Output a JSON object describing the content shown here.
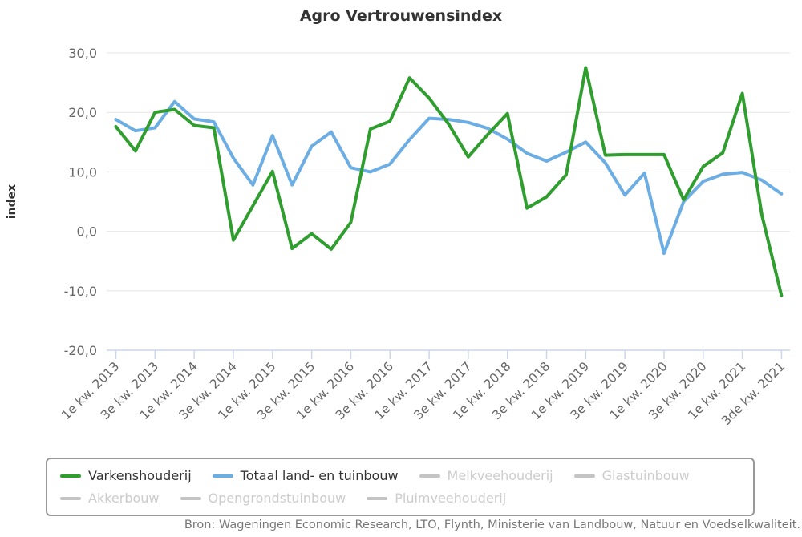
{
  "title": "Agro Vertrouwensindex",
  "source": "Bron: Wageningen Economic Research, LTO, Flynth, Ministerie van Landbouw, Natuur en Voedselkwaliteit.",
  "colors": {
    "varkenshouderij": "#2F9E2F",
    "totaal": "#6CAEE4",
    "disabled_series": "#c4c4c4",
    "gridline": "#e6e6e6",
    "axis_line": "#ccd6eb",
    "axis_label": "#666666",
    "title_text": "#333333"
  },
  "y_axis": {
    "title": "index",
    "tick_labels": [
      "30,0",
      "20,0",
      "10,0",
      "0,0",
      "-10,0",
      "-20,0"
    ],
    "tick_values": [
      30,
      20,
      10,
      0,
      -10,
      -20
    ]
  },
  "x_axis": {
    "tick_labels": [
      "1e kw. 2013",
      "3e kw. 2013",
      "1e kw. 2014",
      "3e kw. 2014",
      "1e kw. 2015",
      "3e kw. 2015",
      "1e kw. 2016",
      "3e kw. 2016",
      "1e kw. 2017",
      "3e kw. 2017",
      "1e kw. 2018",
      "3e kw. 2018",
      "1e kw. 2019",
      "3e kw. 2019",
      "1e kw. 2020",
      "3e kw. 2020",
      "1e kw. 2021",
      "3de kw. 2021"
    ]
  },
  "legend": {
    "items": [
      {
        "label": "Varkenshouderij",
        "color": "#2F9E2F",
        "active": true
      },
      {
        "label": "Totaal land- en tuinbouw",
        "color": "#6CAEE4",
        "active": true
      },
      {
        "label": "Melkveehouderij",
        "color": "#c4c4c4",
        "active": false
      },
      {
        "label": "Glastuinbouw",
        "color": "#c4c4c4",
        "active": false
      },
      {
        "label": "Akkerbouw",
        "color": "#c4c4c4",
        "active": false
      },
      {
        "label": "Opengrondstuinbouw",
        "color": "#c4c4c4",
        "active": false
      },
      {
        "label": "Pluimveehouderij",
        "color": "#c4c4c4",
        "active": false
      }
    ]
  },
  "chart_data": {
    "type": "line",
    "title": "Agro Vertrouwensindex",
    "xlabel": "",
    "ylabel": "index",
    "ylim": [
      -20,
      30
    ],
    "grid": true,
    "legend_position": "bottom",
    "x_tick_labels": [
      "1e kw. 2013",
      "3e kw. 2013",
      "1e kw. 2014",
      "3e kw. 2014",
      "1e kw. 2015",
      "3e kw. 2015",
      "1e kw. 2016",
      "3e kw. 2016",
      "1e kw. 2017",
      "3e kw. 2017",
      "1e kw. 2018",
      "3e kw. 2018",
      "1e kw. 2019",
      "3e kw. 2019",
      "1e kw. 2020",
      "3e kw. 2020",
      "1e kw. 2021",
      "3de kw. 2021"
    ],
    "points_per_labeled_tick": 2,
    "series": [
      {
        "name": "Varkenshouderij",
        "color": "#2F9E2F",
        "values": [
          17.6,
          13.5,
          20.0,
          20.5,
          17.8,
          17.4,
          -1.5,
          4.3,
          10.1,
          -2.9,
          -0.4,
          -3.0,
          1.5,
          17.2,
          18.5,
          25.8,
          22.4,
          18.0,
          12.5,
          16.3,
          19.8,
          3.9,
          5.8,
          9.5,
          27.5,
          12.8,
          12.9,
          12.9,
          12.9,
          5.3,
          10.9,
          13.2,
          23.2,
          2.7,
          -10.8
        ]
      },
      {
        "name": "Totaal land- en tuinbouw",
        "color": "#6CAEE4",
        "values": [
          18.8,
          16.9,
          17.4,
          21.8,
          18.9,
          18.4,
          12.3,
          7.8,
          16.1,
          7.8,
          14.3,
          16.7,
          10.7,
          10.0,
          11.3,
          15.4,
          19.0,
          18.8,
          18.3,
          17.3,
          15.5,
          13.1,
          11.8,
          13.3,
          15.0,
          11.5,
          6.1,
          9.8,
          -3.7,
          5.0,
          8.4,
          9.6,
          9.9,
          8.6,
          6.3
        ]
      }
    ],
    "inactive_series": [
      "Melkveehouderij",
      "Glastuinbouw",
      "Akkerbouw",
      "Opengrondstuinbouw",
      "Pluimveehouderij"
    ]
  }
}
